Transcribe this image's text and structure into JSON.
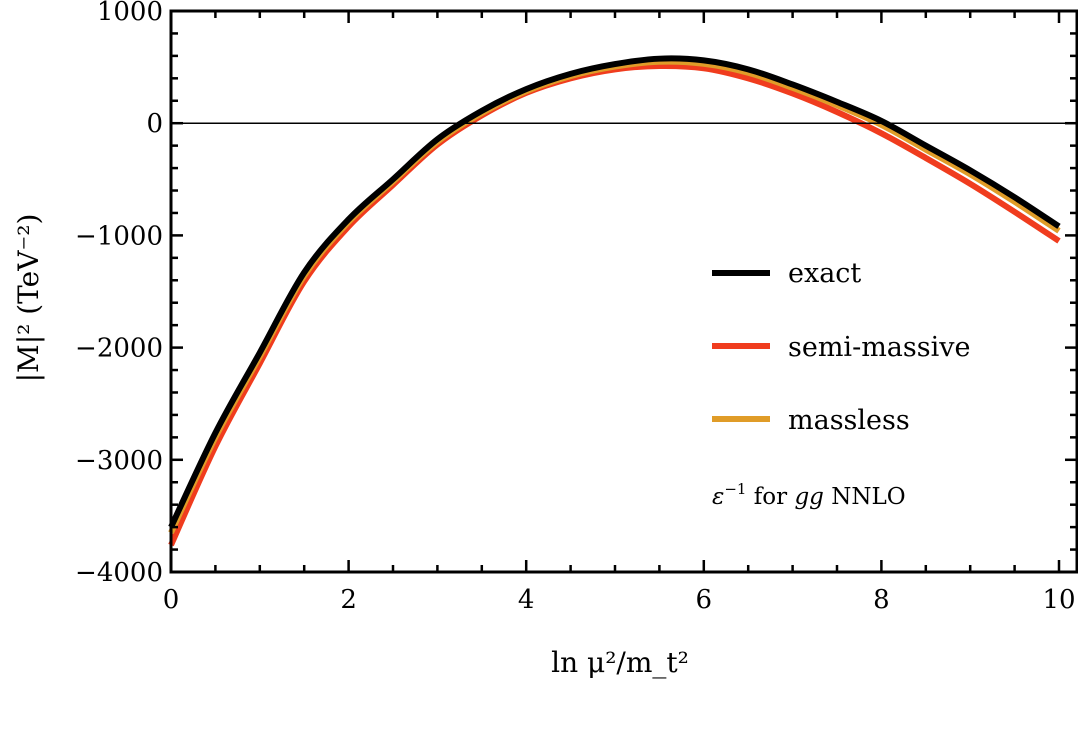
{
  "chart_data": {
    "type": "line",
    "xlabel": "ln μ²/m_t²",
    "xlabel_parts": {
      "prefix": "ln",
      "numerator": "μ",
      "num_sup": "2",
      "denominator": "m",
      "den_sub": "t",
      "den_sup": "2"
    },
    "ylabel": "|M|² (TeV⁻²)",
    "xlim": [
      0,
      10.2
    ],
    "ylim": [
      -4000,
      1000
    ],
    "x_ticks": [
      0,
      2,
      4,
      6,
      8,
      10
    ],
    "x_tick_labels": [
      "0",
      "2",
      "4",
      "6",
      "8",
      "10"
    ],
    "y_ticks": [
      1000,
      0,
      -1000,
      -2000,
      -3000,
      -4000
    ],
    "y_tick_labels": [
      "1000",
      "0",
      "−1000",
      "−2000",
      "−3000",
      "−4000"
    ],
    "zero_line": true,
    "grid": false,
    "legend_placement": "center-right",
    "annotation": "ε⁻¹ for gg NNLO",
    "annotation_parts": {
      "eps": "ε",
      "sup": "−1",
      "mid": " for ",
      "gg": "gg",
      "tail": " NNLO"
    },
    "x": [
      0,
      0.5,
      1,
      1.5,
      2,
      2.5,
      3,
      3.5,
      4,
      4.5,
      5,
      5.5,
      6,
      6.5,
      7,
      7.5,
      8,
      8.5,
      9,
      9.5,
      10
    ],
    "series": [
      {
        "name": "exact",
        "color": "#000000",
        "values": [
          -3600,
          -2760,
          -2045,
          -1330,
          -857,
          -500,
          -143,
          110,
          304,
          440,
          527,
          575,
          560,
          480,
          345,
          190,
          20,
          -200,
          -420,
          -660,
          -920
        ]
      },
      {
        "name": "semi-massive",
        "color": "#f03c1e",
        "values": [
          -3760,
          -2880,
          -2140,
          -1410,
          -920,
          -550,
          -190,
          70,
          270,
          400,
          480,
          510,
          490,
          400,
          265,
          100,
          -90,
          -310,
          -540,
          -790,
          -1050
        ]
      },
      {
        "name": "massless",
        "color": "#e09c28",
        "values": [
          -3650,
          -2800,
          -2080,
          -1360,
          -880,
          -520,
          -165,
          90,
          285,
          420,
          505,
          548,
          530,
          450,
          315,
          160,
          -15,
          -235,
          -455,
          -700,
          -960
        ]
      }
    ]
  }
}
